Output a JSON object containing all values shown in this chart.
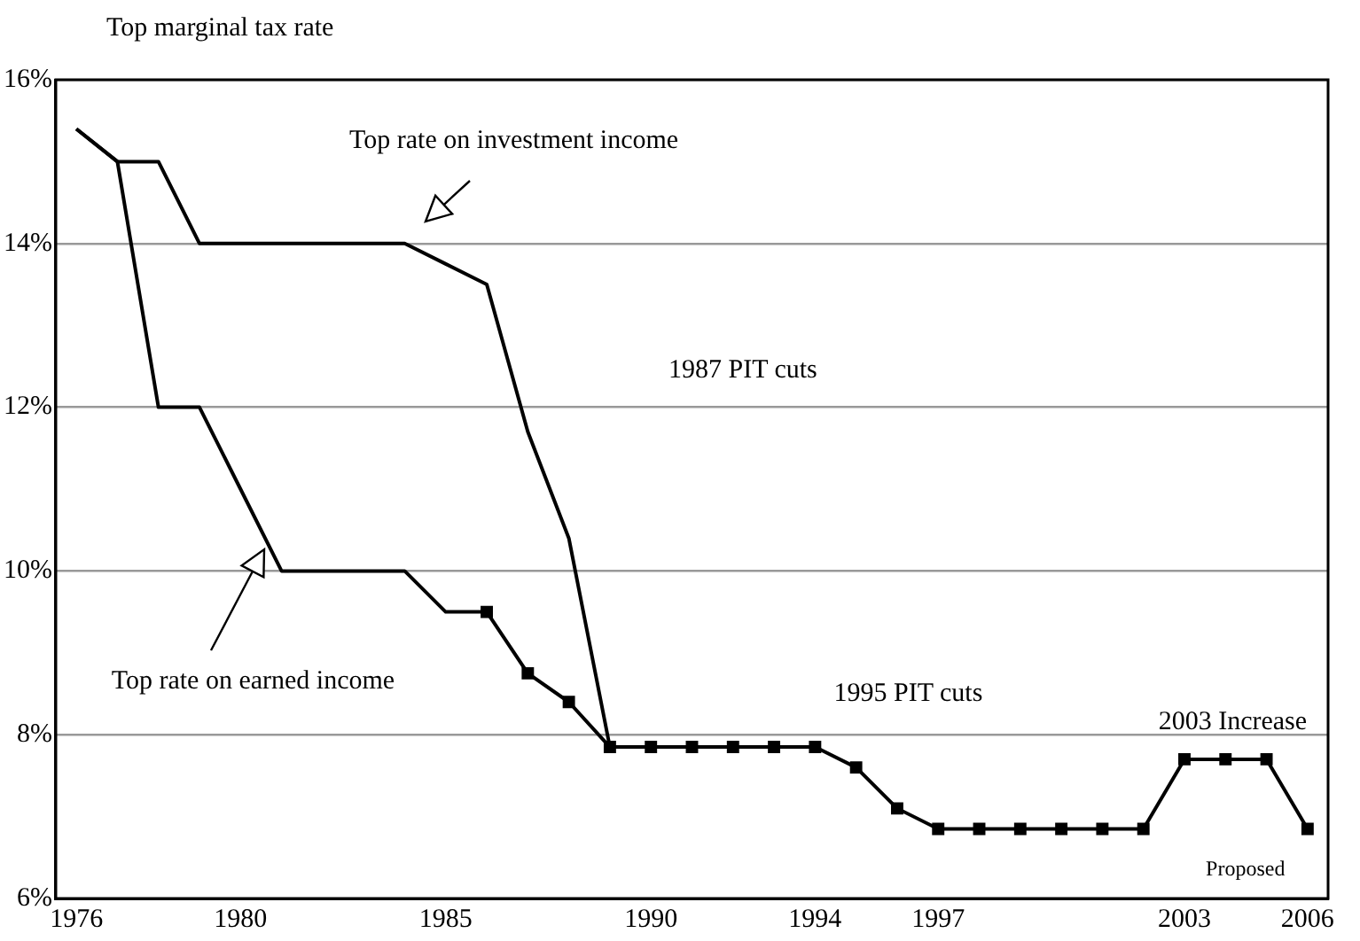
{
  "chart_data": {
    "type": "line",
    "ylabel": "Top marginal tax rate",
    "xlim": [
      1975.5,
      2006.5
    ],
    "xticks": [
      1976,
      1980,
      1985,
      1990,
      1994,
      1997,
      2003,
      2006
    ],
    "ylim": [
      6,
      16
    ],
    "yticks": [
      {
        "value": 6,
        "label": "6%"
      },
      {
        "value": 8,
        "label": "8%"
      },
      {
        "value": 10,
        "label": "10%"
      },
      {
        "value": 12,
        "label": "12%"
      },
      {
        "value": 14,
        "label": "14%"
      },
      {
        "value": 16,
        "label": "16%"
      }
    ],
    "grid": "y",
    "legend": false,
    "line_style": "solid",
    "series": [
      {
        "color": "#000000",
        "marker": "none",
        "x": [
          1976,
          1977,
          1978,
          1979,
          1980,
          1981,
          1982,
          1983,
          1984,
          1985,
          1986,
          1987,
          1988,
          1989
        ],
        "values": [
          15.4,
          15.0,
          15.0,
          14.0,
          14.0,
          14.0,
          14.0,
          14.0,
          14.0,
          13.75,
          13.5,
          11.7,
          10.4,
          7.85
        ]
      },
      {
        "color": "#000000",
        "marker": "none",
        "x": [
          1976,
          1977,
          1978,
          1979,
          1980,
          1981,
          1982,
          1983,
          1984,
          1985,
          1986
        ],
        "values": [
          15.4,
          15.0,
          12.0,
          12.0,
          11.0,
          10.0,
          10.0,
          10.0,
          10.0,
          9.5,
          9.5
        ]
      },
      {
        "color": "#000000",
        "marker": "square",
        "x": [
          1986,
          1987,
          1988,
          1989,
          1990,
          1991,
          1992,
          1993,
          1994,
          1995,
          1996,
          1997,
          1998,
          1999,
          2000,
          2001,
          2002,
          2003,
          2004,
          2005,
          2006
        ],
        "values": [
          9.5,
          8.75,
          8.4,
          7.85,
          7.85,
          7.85,
          7.85,
          7.85,
          7.85,
          7.6,
          7.1,
          6.85,
          6.85,
          6.85,
          6.85,
          6.85,
          6.85,
          7.7,
          7.7,
          7.7,
          6.85
        ]
      }
    ],
    "annotations": [
      "Top rate on investment income",
      "Top rate on earned income",
      "1987 PIT cuts",
      "1995 PIT cuts",
      "2003 Increase",
      "Proposed"
    ]
  }
}
